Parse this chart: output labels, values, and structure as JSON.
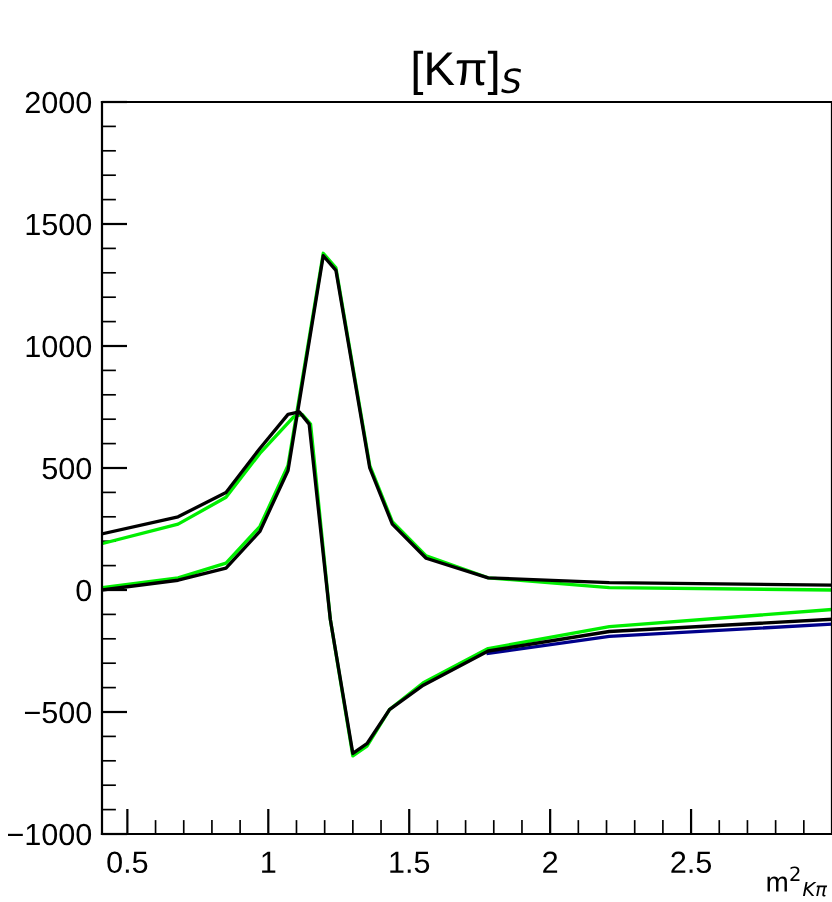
{
  "chart_data": {
    "type": "line",
    "title": "[Kπ]$_{S}$",
    "xlabel": "m$^{2}$$_{Kπ}$",
    "xlim": [
      0.41,
      3.0
    ],
    "ylim": [
      -1000,
      2000
    ],
    "xticks": [
      {
        "value": 0.5,
        "label": "0.5"
      },
      {
        "value": 0.6,
        "label": null
      },
      {
        "value": 0.7,
        "label": null
      },
      {
        "value": 0.8,
        "label": null
      },
      {
        "value": 0.9,
        "label": null
      },
      1,
      {
        "value": 1.1,
        "label": null
      },
      {
        "value": 1.2,
        "label": null
      },
      {
        "value": 1.3,
        "label": null
      },
      {
        "value": 1.4,
        "label": null
      },
      {
        "value": 1.5,
        "label": "1.5"
      },
      {
        "value": 1.6,
        "label": null
      },
      {
        "value": 1.7,
        "label": null
      },
      {
        "value": 1.8,
        "label": null
      },
      {
        "value": 1.9,
        "label": null
      },
      2,
      {
        "value": 2.1,
        "label": null
      },
      {
        "value": 2.2,
        "label": null
      },
      {
        "value": 2.3,
        "label": null
      },
      {
        "value": 2.4,
        "label": null
      },
      {
        "value": 2.5,
        "label": "2.5"
      },
      {
        "value": 2.6,
        "label": null
      },
      {
        "value": 2.7,
        "label": null
      },
      {
        "value": 2.8,
        "label": null
      },
      {
        "value": 2.9,
        "label": null
      }
    ],
    "yticks": [
      -1000,
      {
        "value": -900,
        "label": null
      },
      {
        "value": -800,
        "label": null
      },
      {
        "value": -700,
        "label": null
      },
      {
        "value": -600,
        "label": null
      },
      -500,
      {
        "value": -400,
        "label": null
      },
      {
        "value": -300,
        "label": null
      },
      {
        "value": -200,
        "label": null
      },
      {
        "value": -100,
        "label": null
      },
      0,
      {
        "value": 100,
        "label": null
      },
      {
        "value": 200,
        "label": null
      },
      {
        "value": 300,
        "label": null
      },
      {
        "value": 400,
        "label": null
      },
      500,
      {
        "value": 600,
        "label": null
      },
      {
        "value": 700,
        "label": null
      },
      {
        "value": 800,
        "label": null
      },
      {
        "value": 900,
        "label": null
      },
      1000,
      {
        "value": 1100,
        "label": null
      },
      {
        "value": 1200,
        "label": null
      },
      {
        "value": 1300,
        "label": null
      },
      {
        "value": 1400,
        "label": null
      },
      1500,
      {
        "value": 1600,
        "label": null
      },
      {
        "value": 1700,
        "label": null
      },
      {
        "value": 1800,
        "label": null
      },
      {
        "value": 1900,
        "label": null
      },
      2000
    ],
    "grid": false,
    "legend": false,
    "marker": "none",
    "line_style": "solid",
    "series": [
      {
        "color": "#00ee00",
        "x": [
          0.41,
          0.68,
          0.85,
          0.97,
          1.09,
          1.12,
          1.15,
          1.22,
          1.3,
          1.35,
          1.43,
          1.55,
          1.78,
          2.21,
          3.0
        ],
        "values": [
          190,
          270,
          380,
          560,
          710,
          720,
          680,
          -120,
          -680,
          -640,
          -490,
          -380,
          -240,
          -150,
          -80
        ]
      },
      {
        "color": "#00ee00",
        "x": [
          0.41,
          0.68,
          0.85,
          0.97,
          1.07,
          1.195,
          1.24,
          1.36,
          1.44,
          1.56,
          1.78,
          2.21,
          3.0
        ],
        "values": [
          10,
          50,
          110,
          260,
          510,
          1380,
          1320,
          510,
          280,
          140,
          50,
          10,
          0
        ]
      },
      {
        "color": "#00008b",
        "x": [
          1.78,
          2.21,
          3.0
        ],
        "values": [
          -260,
          -190,
          -140
        ]
      },
      {
        "color": "#000000",
        "x": [
          0.41,
          0.68,
          0.85,
          0.97,
          1.07,
          1.11,
          1.145,
          1.22,
          1.3,
          1.35,
          1.43,
          1.55,
          1.78,
          2.21,
          3.0
        ],
        "values": [
          230,
          300,
          400,
          580,
          720,
          730,
          680,
          -120,
          -670,
          -630,
          -490,
          -390,
          -250,
          -170,
          -120
        ]
      },
      {
        "color": "#000000",
        "x": [
          0.41,
          0.68,
          0.85,
          0.97,
          1.07,
          1.195,
          1.24,
          1.36,
          1.44,
          1.56,
          1.78,
          2.21,
          3.0
        ],
        "values": [
          0,
          40,
          90,
          240,
          490,
          1370,
          1310,
          500,
          270,
          130,
          50,
          30,
          20
        ]
      }
    ]
  }
}
